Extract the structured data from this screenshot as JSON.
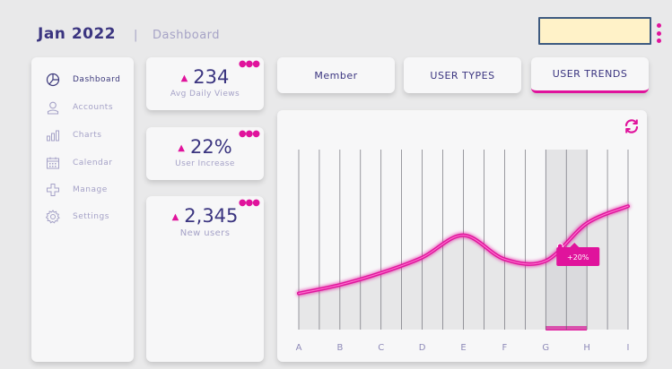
{
  "header": {
    "title": "Jan 2022",
    "separator": "|",
    "subtitle": "Dashboard"
  },
  "sidebar": {
    "items": [
      {
        "label": "Dashboard",
        "icon": "pie-chart-icon",
        "active": true
      },
      {
        "label": "Accounts",
        "icon": "user-icon",
        "active": false
      },
      {
        "label": "Charts",
        "icon": "bar-chart-icon",
        "active": false
      },
      {
        "label": "Calendar",
        "icon": "calendar-icon",
        "active": false
      },
      {
        "label": "Manage",
        "icon": "move-icon",
        "active": false
      },
      {
        "label": "Settings",
        "icon": "gear-icon",
        "active": false
      }
    ]
  },
  "stats": [
    {
      "value": "234",
      "label": "Avg Daily Views"
    },
    {
      "value": "22%",
      "label": "User Increase"
    },
    {
      "value": "2,345",
      "label": "New users"
    }
  ],
  "tabs": [
    {
      "label": "Member",
      "active": false
    },
    {
      "label": "USER TYPES",
      "active": false
    },
    {
      "label": "USER TRENDS",
      "active": true
    }
  ],
  "colors": {
    "accent": "#e0139c",
    "text": "#3b3580",
    "muted": "#a5a2c7",
    "background": "#e9e9ea"
  },
  "chart_data": {
    "type": "line",
    "categories": [
      "A",
      "B",
      "C",
      "D",
      "E",
      "F",
      "G",
      "H",
      "I"
    ],
    "values": [
      18,
      23,
      30,
      39,
      52,
      38,
      37,
      59,
      69
    ],
    "ylim": [
      0,
      100
    ],
    "grid": true,
    "highlight_category": "G",
    "annotation": "+20%"
  }
}
